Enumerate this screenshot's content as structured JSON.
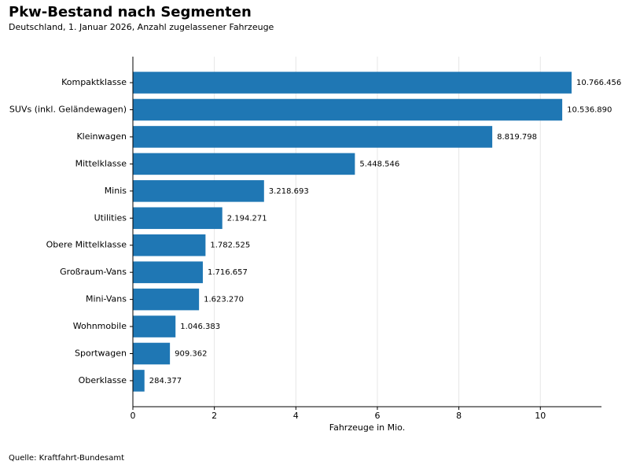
{
  "chart_data": {
    "type": "barh",
    "title": "Pkw-Bestand nach Segmenten",
    "subtitle": "Deutschland, 1. Januar 2026, Anzahl zugelassener Fahrzeuge",
    "xlabel": "Fahrzeuge in Mio.",
    "source": "Quelle: Kraftfahrt-Bundesamt",
    "categories": [
      "Kompaktklasse",
      "SUVs (inkl. Geländewagen)",
      "Kleinwagen",
      "Mittelklasse",
      "Minis",
      "Utilities",
      "Obere Mittelklasse",
      "Großraum-Vans",
      "Mini-Vans",
      "Wohnmobile",
      "Sportwagen",
      "Oberklasse"
    ],
    "values": [
      10.766456,
      10.53689,
      8.819798,
      5.448546,
      3.218693,
      2.194271,
      1.782525,
      1.716657,
      1.62327,
      1.046383,
      0.909362,
      0.284377
    ],
    "value_labels": [
      "10.766.456",
      "10.536.890",
      "8.819.798",
      "5.448.546",
      "3.218.693",
      "2.194.271",
      "1.782.525",
      "1.716.657",
      "1.623.270",
      "1.046.383",
      "909.362",
      "284.377"
    ],
    "color": "#1f77b4",
    "xlim": [
      0,
      11.5
    ],
    "xticks": [
      0,
      2,
      4,
      6,
      8,
      10
    ],
    "grid": true
  }
}
